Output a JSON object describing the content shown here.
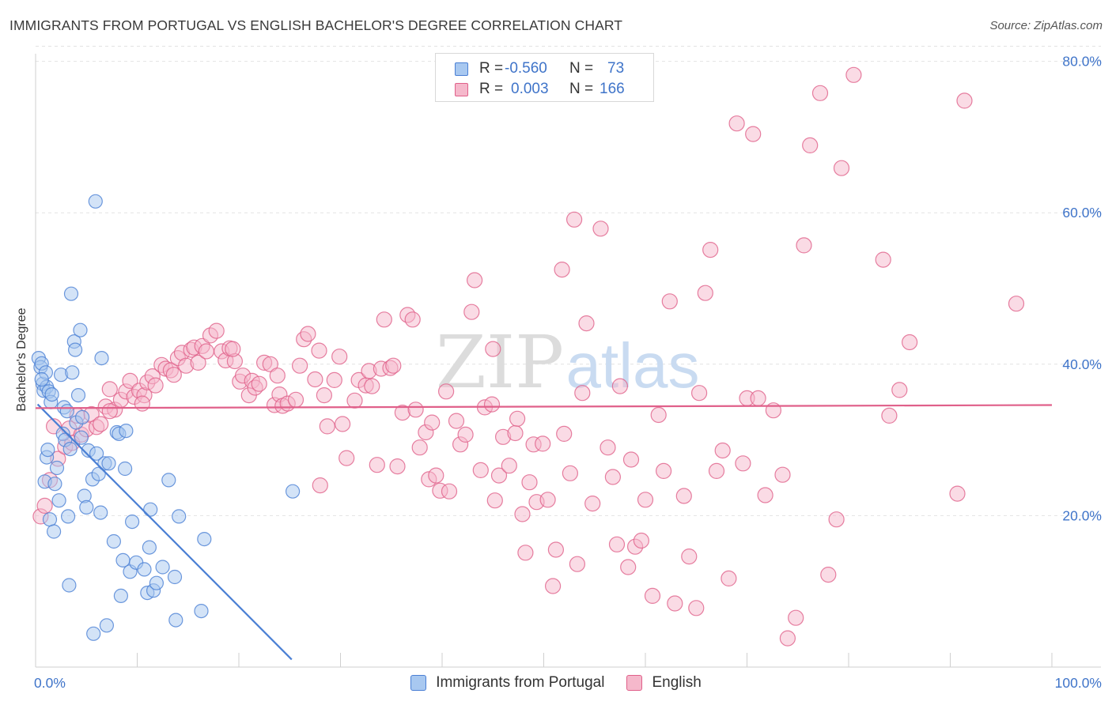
{
  "header": {
    "title": "IMMIGRANTS FROM PORTUGAL VS ENGLISH BACHELOR'S DEGREE CORRELATION CHART",
    "source": "Source: ZipAtlas.com"
  },
  "watermark": {
    "zip": "ZIP",
    "atlas": "atlas"
  },
  "colors": {
    "blue": "#4a7fd4",
    "blue_fill": "#a8c8f0",
    "pink": "#e0608a",
    "pink_fill": "#f5b8cb",
    "axis_text": "#3f74c9",
    "grid": "#e2e2e2"
  },
  "legend": {
    "rows": [
      {
        "r_label": "R =",
        "r_value": "-0.560",
        "n_label": "N =",
        "n_value": "73"
      },
      {
        "r_label": "R =",
        "r_value": "0.003",
        "n_label": "N =",
        "n_value": "166"
      }
    ]
  },
  "bottom_legend": {
    "series1": "Immigrants from Portugal",
    "series2": "English"
  },
  "chart_data": {
    "type": "scatter",
    "title": "IMMIGRANTS FROM PORTUGAL VS ENGLISH BACHELOR'S DEGREE CORRELATION CHART",
    "xlabel": "",
    "ylabel": "Bachelor's Degree",
    "xlim": [
      0,
      100
    ],
    "ylim": [
      0,
      82
    ],
    "x_tick_labels": [
      {
        "value": 0,
        "label": "0.0%"
      },
      {
        "value": 100,
        "label": "100.0%"
      }
    ],
    "y_tick_labels": [
      {
        "value": 20,
        "label": "20.0%"
      },
      {
        "value": 40,
        "label": "40.0%"
      },
      {
        "value": 60,
        "label": "60.0%"
      },
      {
        "value": 80,
        "label": "80.0%"
      }
    ],
    "x_minor_ticks": [
      0,
      10,
      20,
      30,
      40,
      50,
      60,
      70,
      80,
      90,
      100
    ],
    "series": [
      {
        "name": "Immigrants from Portugal",
        "color": "#4a7fd4",
        "fill": "#a8c8f0",
        "R": -0.56,
        "N": 73,
        "trend": {
          "x": [
            0.2,
            25.2
          ],
          "y": [
            34.7,
            1.0
          ]
        },
        "points": [
          [
            0.3,
            40.8
          ],
          [
            0.5,
            39.6
          ],
          [
            0.6,
            40.1
          ],
          [
            0.7,
            37.4
          ],
          [
            0.8,
            36.5
          ],
          [
            1.0,
            38.9
          ],
          [
            1.1,
            37.0
          ],
          [
            1.3,
            36.4
          ],
          [
            1.5,
            35.0
          ],
          [
            1.6,
            36.0
          ],
          [
            0.9,
            24.5
          ],
          [
            1.1,
            27.7
          ],
          [
            1.2,
            28.7
          ],
          [
            1.4,
            19.5
          ],
          [
            1.8,
            17.9
          ],
          [
            1.9,
            24.2
          ],
          [
            2.1,
            26.3
          ],
          [
            2.3,
            22.0
          ],
          [
            2.5,
            38.6
          ],
          [
            2.8,
            34.3
          ],
          [
            2.7,
            30.8
          ],
          [
            2.9,
            30.0
          ],
          [
            3.1,
            33.8
          ],
          [
            3.4,
            28.8
          ],
          [
            3.2,
            19.9
          ],
          [
            3.3,
            10.8
          ],
          [
            3.5,
            49.3
          ],
          [
            3.6,
            38.9
          ],
          [
            3.8,
            43.0
          ],
          [
            3.9,
            41.9
          ],
          [
            4.0,
            32.3
          ],
          [
            4.2,
            35.9
          ],
          [
            4.4,
            44.5
          ],
          [
            4.5,
            30.3
          ],
          [
            4.6,
            33.0
          ],
          [
            4.8,
            22.6
          ],
          [
            5.0,
            21.1
          ],
          [
            5.2,
            28.6
          ],
          [
            5.6,
            24.8
          ],
          [
            5.7,
            4.4
          ],
          [
            5.9,
            61.5
          ],
          [
            6.0,
            28.2
          ],
          [
            6.2,
            25.5
          ],
          [
            6.4,
            20.4
          ],
          [
            6.5,
            40.8
          ],
          [
            6.8,
            26.9
          ],
          [
            7.0,
            5.5
          ],
          [
            7.2,
            26.9
          ],
          [
            7.7,
            16.6
          ],
          [
            8.0,
            31.0
          ],
          [
            8.2,
            30.8
          ],
          [
            8.4,
            9.4
          ],
          [
            8.6,
            14.1
          ],
          [
            8.8,
            26.2
          ],
          [
            8.9,
            31.2
          ],
          [
            9.3,
            12.6
          ],
          [
            9.5,
            19.2
          ],
          [
            9.9,
            13.8
          ],
          [
            10.7,
            12.9
          ],
          [
            11.0,
            9.8
          ],
          [
            11.2,
            15.8
          ],
          [
            11.3,
            20.8
          ],
          [
            11.6,
            10.1
          ],
          [
            11.9,
            11.1
          ],
          [
            12.5,
            13.2
          ],
          [
            13.1,
            24.7
          ],
          [
            13.7,
            11.9
          ],
          [
            13.8,
            6.2
          ],
          [
            14.1,
            19.9
          ],
          [
            16.3,
            7.4
          ],
          [
            16.6,
            16.9
          ],
          [
            25.3,
            23.2
          ],
          [
            0.6,
            38.0
          ]
        ]
      },
      {
        "name": "English",
        "color": "#e0608a",
        "fill": "#f5b8cb",
        "R": 0.003,
        "N": 166,
        "trend": {
          "x": [
            0,
            100
          ],
          "y": [
            34.2,
            34.6
          ]
        },
        "points": [
          [
            0.5,
            19.9
          ],
          [
            0.9,
            21.3
          ],
          [
            1.4,
            24.7
          ],
          [
            1.8,
            31.8
          ],
          [
            2.2,
            27.5
          ],
          [
            2.9,
            29.1
          ],
          [
            3.3,
            31.5
          ],
          [
            3.6,
            29.6
          ],
          [
            4.1,
            33.2
          ],
          [
            4.5,
            30.7
          ],
          [
            5.0,
            31.4
          ],
          [
            5.5,
            33.4
          ],
          [
            6.0,
            31.7
          ],
          [
            6.4,
            32.1
          ],
          [
            6.9,
            34.4
          ],
          [
            7.3,
            36.7
          ],
          [
            7.8,
            34.0
          ],
          [
            8.4,
            35.3
          ],
          [
            8.9,
            36.4
          ],
          [
            9.3,
            37.8
          ],
          [
            9.7,
            35.7
          ],
          [
            10.2,
            36.5
          ],
          [
            10.7,
            35.9
          ],
          [
            11.0,
            37.6
          ],
          [
            11.5,
            38.4
          ],
          [
            11.8,
            37.2
          ],
          [
            12.4,
            39.9
          ],
          [
            12.8,
            39.4
          ],
          [
            13.3,
            39.2
          ],
          [
            13.6,
            38.6
          ],
          [
            14.0,
            40.8
          ],
          [
            14.4,
            41.5
          ],
          [
            14.8,
            39.8
          ],
          [
            15.3,
            41.9
          ],
          [
            15.6,
            42.2
          ],
          [
            16.0,
            40.2
          ],
          [
            16.4,
            42.4
          ],
          [
            16.8,
            41.7
          ],
          [
            17.2,
            43.8
          ],
          [
            17.8,
            44.4
          ],
          [
            18.3,
            41.7
          ],
          [
            18.7,
            40.5
          ],
          [
            19.1,
            42.1
          ],
          [
            19.6,
            40.4
          ],
          [
            20.1,
            37.7
          ],
          [
            20.4,
            38.5
          ],
          [
            21.0,
            35.9
          ],
          [
            21.3,
            37.8
          ],
          [
            21.6,
            36.9
          ],
          [
            22.0,
            37.4
          ],
          [
            22.5,
            40.2
          ],
          [
            23.1,
            40.0
          ],
          [
            23.5,
            34.6
          ],
          [
            24.0,
            36.0
          ],
          [
            24.3,
            34.5
          ],
          [
            24.8,
            34.8
          ],
          [
            25.6,
            35.3
          ],
          [
            26.0,
            39.8
          ],
          [
            26.4,
            43.3
          ],
          [
            26.8,
            44.0
          ],
          [
            27.5,
            38.0
          ],
          [
            27.9,
            41.8
          ],
          [
            28.4,
            35.9
          ],
          [
            28.7,
            31.8
          ],
          [
            29.4,
            37.9
          ],
          [
            29.9,
            41.0
          ],
          [
            30.2,
            32.1
          ],
          [
            30.6,
            27.6
          ],
          [
            31.4,
            35.2
          ],
          [
            31.8,
            37.9
          ],
          [
            32.5,
            37.2
          ],
          [
            32.8,
            39.1
          ],
          [
            33.1,
            37.1
          ],
          [
            33.6,
            26.7
          ],
          [
            34.0,
            39.4
          ],
          [
            34.3,
            45.9
          ],
          [
            34.9,
            39.5
          ],
          [
            35.2,
            39.8
          ],
          [
            35.6,
            26.5
          ],
          [
            36.1,
            33.6
          ],
          [
            36.6,
            46.5
          ],
          [
            37.1,
            45.9
          ],
          [
            37.4,
            34.0
          ],
          [
            37.8,
            29.0
          ],
          [
            38.4,
            31.0
          ],
          [
            38.7,
            24.8
          ],
          [
            39.0,
            32.3
          ],
          [
            39.4,
            25.3
          ],
          [
            39.8,
            23.3
          ],
          [
            40.4,
            36.4
          ],
          [
            40.7,
            23.2
          ],
          [
            41.4,
            32.5
          ],
          [
            41.8,
            29.4
          ],
          [
            42.3,
            30.7
          ],
          [
            42.9,
            46.9
          ],
          [
            43.2,
            51.1
          ],
          [
            43.8,
            26.0
          ],
          [
            44.2,
            34.3
          ],
          [
            44.9,
            34.7
          ],
          [
            45.2,
            22.0
          ],
          [
            45.6,
            25.3
          ],
          [
            46.0,
            30.4
          ],
          [
            46.6,
            26.6
          ],
          [
            47.2,
            30.9
          ],
          [
            47.4,
            32.8
          ],
          [
            47.9,
            20.2
          ],
          [
            48.2,
            15.1
          ],
          [
            48.6,
            24.4
          ],
          [
            49.0,
            29.4
          ],
          [
            49.3,
            21.8
          ],
          [
            49.9,
            29.5
          ],
          [
            50.4,
            22.1
          ],
          [
            50.9,
            10.7
          ],
          [
            51.2,
            15.5
          ],
          [
            51.8,
            52.5
          ],
          [
            52.0,
            30.8
          ],
          [
            52.6,
            25.6
          ],
          [
            53.0,
            59.1
          ],
          [
            53.3,
            13.6
          ],
          [
            53.8,
            36.2
          ],
          [
            54.2,
            45.4
          ],
          [
            54.8,
            21.6
          ],
          [
            55.6,
            57.9
          ],
          [
            56.3,
            29.0
          ],
          [
            56.8,
            25.1
          ],
          [
            57.2,
            16.2
          ],
          [
            57.5,
            37.1
          ],
          [
            58.3,
            13.2
          ],
          [
            58.6,
            27.4
          ],
          [
            59.0,
            15.9
          ],
          [
            59.6,
            16.7
          ],
          [
            60.0,
            22.1
          ],
          [
            60.7,
            9.4
          ],
          [
            61.3,
            33.3
          ],
          [
            61.8,
            25.9
          ],
          [
            62.4,
            48.3
          ],
          [
            62.9,
            8.4
          ],
          [
            63.8,
            22.6
          ],
          [
            64.3,
            14.6
          ],
          [
            65.0,
            7.8
          ],
          [
            65.3,
            36.2
          ],
          [
            65.9,
            49.4
          ],
          [
            66.4,
            55.1
          ],
          [
            67.0,
            25.9
          ],
          [
            67.6,
            28.6
          ],
          [
            68.2,
            11.7
          ],
          [
            69.0,
            71.8
          ],
          [
            69.6,
            26.9
          ],
          [
            70.0,
            35.5
          ],
          [
            70.6,
            70.4
          ],
          [
            71.1,
            35.5
          ],
          [
            71.8,
            22.7
          ],
          [
            72.6,
            33.9
          ],
          [
            73.5,
            25.4
          ],
          [
            74.0,
            3.8
          ],
          [
            74.8,
            6.5
          ],
          [
            75.6,
            55.7
          ],
          [
            76.2,
            68.9
          ],
          [
            77.2,
            75.8
          ],
          [
            78.0,
            12.2
          ],
          [
            78.8,
            19.5
          ],
          [
            79.3,
            65.9
          ],
          [
            80.5,
            78.2
          ],
          [
            83.4,
            53.8
          ],
          [
            84.0,
            33.2
          ],
          [
            85.0,
            36.6
          ],
          [
            86.0,
            42.9
          ],
          [
            90.7,
            22.9
          ],
          [
            91.4,
            74.8
          ],
          [
            96.5,
            48.0
          ],
          [
            19.4,
            42.0
          ],
          [
            10.5,
            34.8
          ],
          [
            7.3,
            33.8
          ],
          [
            23.8,
            38.5
          ],
          [
            28.0,
            24.0
          ],
          [
            45.0,
            42.0
          ]
        ]
      }
    ]
  }
}
